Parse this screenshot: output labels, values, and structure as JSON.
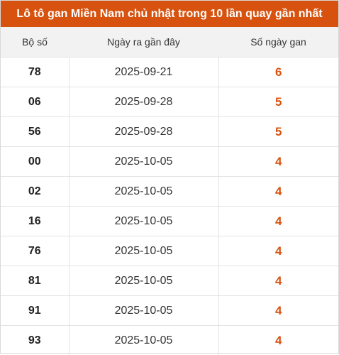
{
  "title": "Lô tô gan Miền Nam chủ nhật trong 10 lần quay gần nhất",
  "columns": [
    "Bộ số",
    "Ngày ra gần đây",
    "Số ngày gan"
  ],
  "rows": [
    {
      "number": "78",
      "date": "2025-09-21",
      "days": "6"
    },
    {
      "number": "06",
      "date": "2025-09-28",
      "days": "5"
    },
    {
      "number": "56",
      "date": "2025-09-28",
      "days": "5"
    },
    {
      "number": "00",
      "date": "2025-10-05",
      "days": "4"
    },
    {
      "number": "02",
      "date": "2025-10-05",
      "days": "4"
    },
    {
      "number": "16",
      "date": "2025-10-05",
      "days": "4"
    },
    {
      "number": "76",
      "date": "2025-10-05",
      "days": "4"
    },
    {
      "number": "81",
      "date": "2025-10-05",
      "days": "4"
    },
    {
      "number": "91",
      "date": "2025-10-05",
      "days": "4"
    },
    {
      "number": "93",
      "date": "2025-10-05",
      "days": "4"
    }
  ],
  "colors": {
    "accent": "#d7520f",
    "header_bg": "#f2f2f2",
    "border": "#e3e3e3"
  }
}
